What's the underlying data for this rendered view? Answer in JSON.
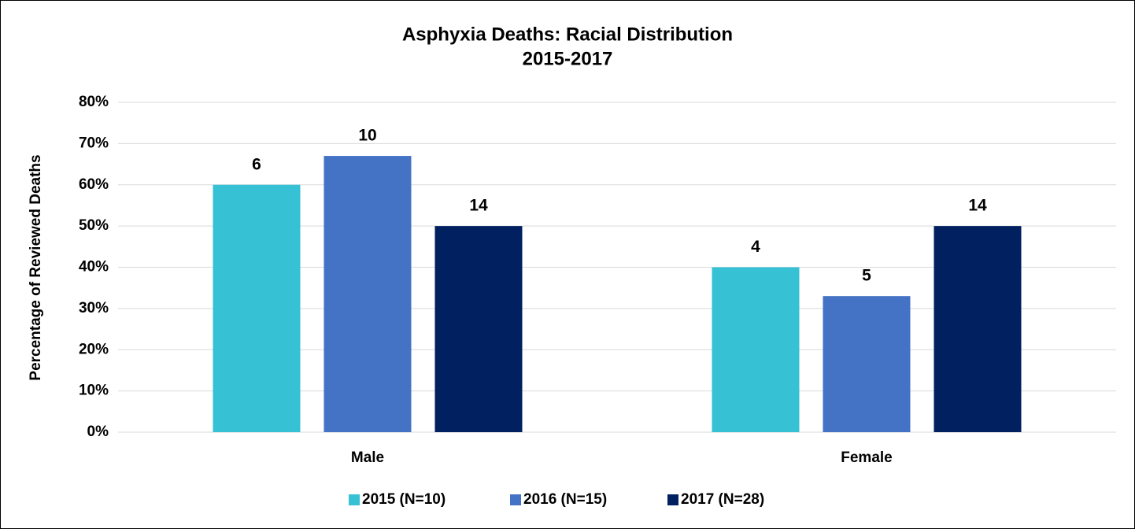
{
  "chart_data": {
    "type": "bar",
    "title": "Asphyxia Deaths: Racial Distribution",
    "subtitle": "2015-2017",
    "y_label": "Percentage of Reviewed Deaths",
    "categories": [
      "Male",
      "Female"
    ],
    "series": [
      {
        "name": "2015 (N=10)",
        "color": "#36c2d4",
        "values": [
          60,
          40
        ],
        "data_labels": [
          "6",
          "4"
        ]
      },
      {
        "name": "2016 (N=15)",
        "color": "#4472c4",
        "values": [
          67,
          33
        ],
        "data_labels": [
          "10",
          "5"
        ]
      },
      {
        "name": "2017 (N=28)",
        "color": "#002060",
        "values": [
          50,
          50
        ],
        "data_labels": [
          "14",
          "14"
        ]
      }
    ],
    "ylim": [
      0,
      80
    ],
    "yticks": [
      {
        "value": 0,
        "label": "0%"
      },
      {
        "value": 10,
        "label": "10%"
      },
      {
        "value": 20,
        "label": "20%"
      },
      {
        "value": 30,
        "label": "30%"
      },
      {
        "value": 40,
        "label": "40%"
      },
      {
        "value": 50,
        "label": "50%"
      },
      {
        "value": 60,
        "label": "60%"
      },
      {
        "value": 70,
        "label": "70%"
      },
      {
        "value": 80,
        "label": "80%"
      }
    ],
    "grid": true,
    "legend": "bottom"
  }
}
